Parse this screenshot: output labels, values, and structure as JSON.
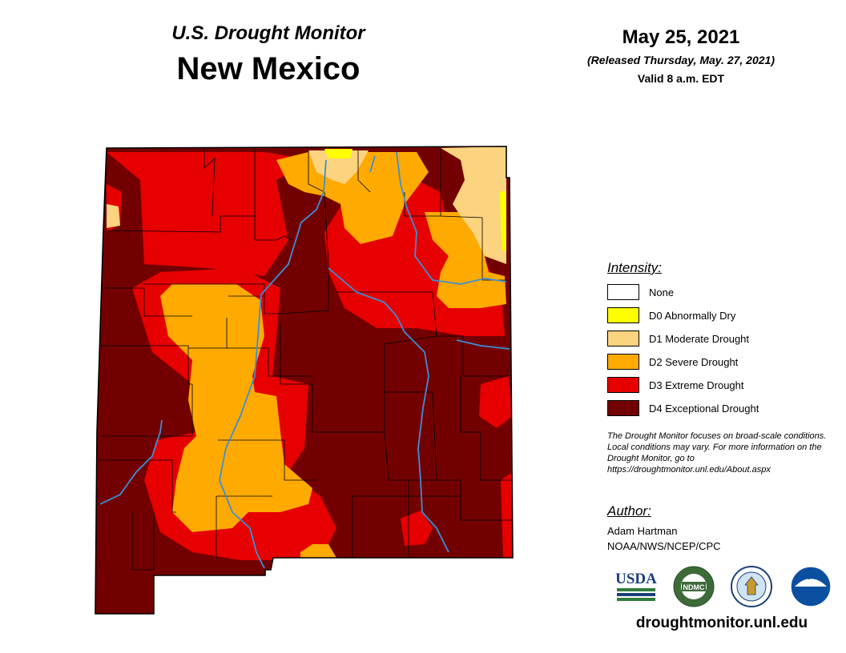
{
  "header": {
    "subtitle": "U.S. Drought Monitor",
    "state": "New Mexico",
    "date": "May 25, 2021",
    "released": "(Released Thursday, May. 27, 2021)",
    "valid": "Valid 8 a.m. EDT"
  },
  "legend": {
    "title": "Intensity:",
    "items": [
      {
        "label": "None",
        "color": "#ffffff"
      },
      {
        "label": "D0 Abnormally Dry",
        "color": "#ffff00"
      },
      {
        "label": "D1 Moderate Drought",
        "color": "#fcd37f"
      },
      {
        "label": "D2 Severe Drought",
        "color": "#ffaa00"
      },
      {
        "label": "D3 Extreme Drought",
        "color": "#e60000"
      },
      {
        "label": "D4 Exceptional Drought",
        "color": "#730000"
      }
    ]
  },
  "disclaimer": "The Drought Monitor focuses on broad-scale conditions. Local conditions may vary. For more information on the Drought Monitor, go to https://droughtmonitor.unl.edu/About.aspx",
  "author": {
    "title": "Author:",
    "name": "Adam Hartman",
    "org": "NOAA/NWS/NCEP/CPC"
  },
  "logos": {
    "usda": "USDA",
    "ndmc": "NDMC",
    "noaa": "NOAA"
  },
  "footer_url": "droughtmonitor.unl.edu",
  "colors": {
    "river": "#3b8fd6",
    "county_border": "#000000",
    "usda_blue": "#1d3f7a",
    "usda_green": "#2f7d3a",
    "ndmc_green": "#3c6b38",
    "noaa_blue": "#0b4fa0"
  }
}
